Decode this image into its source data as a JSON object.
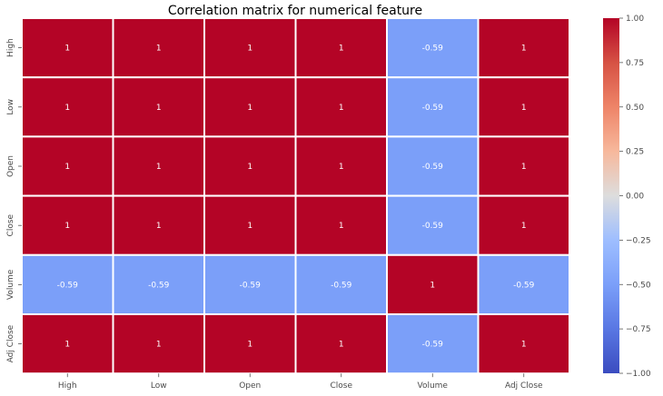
{
  "chart_data": {
    "type": "heatmap",
    "title": "Correlation matrix for numerical feature",
    "x_categories": [
      "High",
      "Low",
      "Open",
      "Close",
      "Volume",
      "Adj Close"
    ],
    "y_categories": [
      "High",
      "Low",
      "Open",
      "Close",
      "Volume",
      "Adj Close"
    ],
    "values": [
      [
        1,
        1,
        1,
        1,
        -0.59,
        1
      ],
      [
        1,
        1,
        1,
        1,
        -0.59,
        1
      ],
      [
        1,
        1,
        1,
        1,
        -0.59,
        1
      ],
      [
        1,
        1,
        1,
        1,
        -0.59,
        1
      ],
      [
        -0.59,
        -0.59,
        -0.59,
        -0.59,
        1,
        -0.59
      ],
      [
        1,
        1,
        1,
        1,
        -0.59,
        1
      ]
    ],
    "annotations": [
      [
        "1",
        "1",
        "1",
        "1",
        "-0.59",
        "1"
      ],
      [
        "1",
        "1",
        "1",
        "1",
        "-0.59",
        "1"
      ],
      [
        "1",
        "1",
        "1",
        "1",
        "-0.59",
        "1"
      ],
      [
        "1",
        "1",
        "1",
        "1",
        "-0.59",
        "1"
      ],
      [
        "-0.59",
        "-0.59",
        "-0.59",
        "-0.59",
        "1",
        "-0.59"
      ],
      [
        "1",
        "1",
        "1",
        "1",
        "-0.59",
        "1"
      ]
    ],
    "colorbar": {
      "range": [
        -1,
        1
      ],
      "ticks": [
        1,
        0.75,
        0.5,
        0.25,
        0,
        -0.25,
        -0.5,
        -0.75,
        -1
      ],
      "tick_labels": [
        "1.00",
        "0.75",
        "0.50",
        "0.25",
        "0.00",
        "−0.25",
        "−0.50",
        "−0.75",
        "−1.00"
      ],
      "colormap": "coolwarm"
    },
    "grid": false,
    "colors": {
      "positive_max": "#b40426",
      "negative_cell": "#7b9ff9",
      "negative_min": "#3b4cc0",
      "neutral": "#dddddd"
    }
  }
}
